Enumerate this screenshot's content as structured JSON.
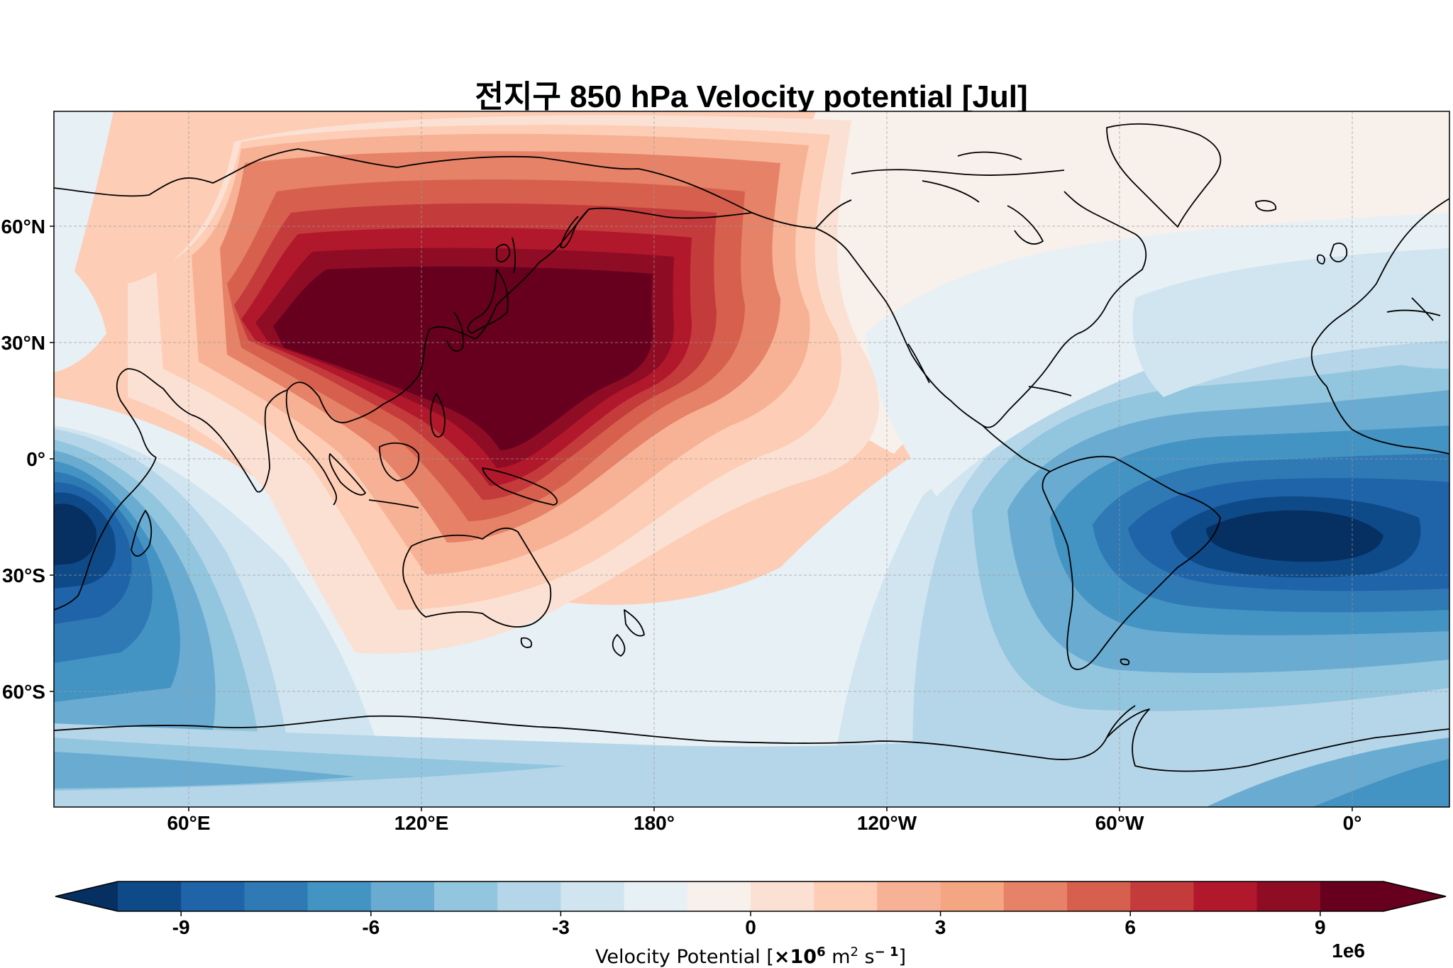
{
  "title": "전지구 850 hPa Velocity potential [Jul]",
  "map": {
    "projection": "PlateCarree",
    "central_longitude": 160,
    "variable": "850 hPa velocity potential",
    "month": "Jul",
    "lat_ticks": [
      "60°N",
      "30°N",
      "0°",
      "30°S",
      "60°S"
    ],
    "lon_ticks": [
      "60°E",
      "120°E",
      "180°",
      "120°W",
      "60°W",
      "0°"
    ],
    "features": {
      "positive_center": {
        "label": "Western Pacific maximum",
        "approx_lon": 155,
        "approx_lat": 15,
        "value": 10
      },
      "negative_center_atlantic": {
        "label": "South Atlantic minimum",
        "approx_lon": -25,
        "approx_lat": -20,
        "value": -10
      },
      "negative_center_indian": {
        "label": "SW Indian Ocean minimum",
        "approx_lon": 40,
        "approx_lat": -22,
        "value": -10
      }
    }
  },
  "colorbar": {
    "label_prefix": "Velocity Potential [",
    "label_mult": "×10",
    "label_exp": "6",
    "label_unit1": " m",
    "label_unit1_exp": "2",
    "label_unit2": " s",
    "label_unit2_exp": "− 1",
    "label_suffix": "]",
    "offset_text": "1e6",
    "tick_labels": [
      "-9",
      "-6",
      "-3",
      "0",
      "3",
      "6",
      "9"
    ],
    "levels": [
      -10,
      -9,
      -8,
      -7,
      -6,
      -5,
      -4,
      -3,
      -2,
      -1,
      0,
      1,
      2,
      3,
      4,
      5,
      6,
      7,
      8,
      9,
      10
    ],
    "extend": "both",
    "colors": [
      "#053061",
      "#0f4a88",
      "#1f63a8",
      "#2f79b5",
      "#4393c3",
      "#6aabd1",
      "#92c5de",
      "#b5d6e8",
      "#d1e5f0",
      "#e7f0f5",
      "#f8f0eb",
      "#fbe1d4",
      "#fdcdb5",
      "#f7b195",
      "#f4a582",
      "#e58267",
      "#d6604d",
      "#c43b3c",
      "#b2182b",
      "#8f0c25",
      "#67001f"
    ]
  }
}
